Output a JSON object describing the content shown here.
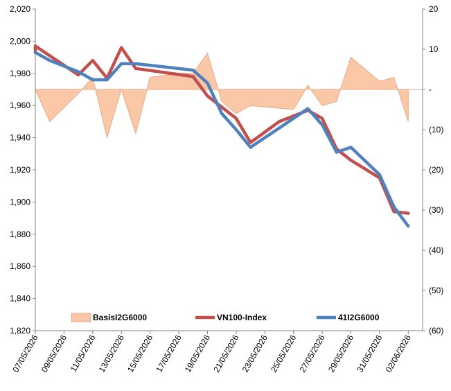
{
  "chart_data": {
    "type": "line",
    "title": "",
    "xlabel": "",
    "ylabel": "",
    "y2label": "",
    "x": [
      "07/05/2026",
      "08/05/2026",
      "09/05/2026",
      "10/05/2026",
      "11/05/2026",
      "12/05/2026",
      "13/05/2026",
      "14/05/2026",
      "15/05/2026",
      "16/05/2026",
      "17/05/2026",
      "18/05/2026",
      "19/05/2026",
      "20/05/2026",
      "21/05/2026",
      "22/05/2026",
      "23/05/2026",
      "24/05/2026",
      "25/05/2026",
      "26/05/2026",
      "27/05/2026",
      "28/05/2026",
      "29/05/2026",
      "30/05/2026",
      "31/05/2026",
      "01/06/2026",
      "02/06/2026",
      "03/06/2026"
    ],
    "x_tick_labels": [
      "07/05/2026",
      "09/05/2026",
      "11/05/2026",
      "13/05/2026",
      "15/05/2026",
      "17/05/2026",
      "19/05/2026",
      "21/05/2026",
      "23/05/2026",
      "25/05/2026",
      "27/05/2026",
      "29/05/2026",
      "31/05/2026",
      "02/06/2026"
    ],
    "ylim": [
      1820,
      2020
    ],
    "y_ticks": [
      "1,820",
      "1,840",
      "1,860",
      "1,880",
      "1,900",
      "1,920",
      "1,940",
      "1,960",
      "1,980",
      "2,000",
      "2,020"
    ],
    "y2lim": [
      -60,
      20
    ],
    "y2_ticks": [
      "(60)",
      "(50)",
      "(40)",
      "(30)",
      "(20)",
      "(10)",
      "-",
      "10",
      "20"
    ],
    "series": [
      {
        "name": "BasisI2G6000",
        "type": "area",
        "axis": "right",
        "color": "#fac8a6",
        "points": [
          [
            "07/05/2026",
            0
          ],
          [
            "08/05/2026",
            -8
          ],
          [
            "10/05/2026",
            -1
          ],
          [
            "11/05/2026",
            3
          ],
          [
            "12/05/2026",
            -12
          ],
          [
            "13/05/2026",
            0
          ],
          [
            "14/05/2026",
            -11
          ],
          [
            "15/05/2026",
            3
          ],
          [
            "17/05/2026",
            4
          ],
          [
            "18/05/2026",
            4
          ],
          [
            "19/05/2026",
            9
          ],
          [
            "20/05/2026",
            -3
          ],
          [
            "21/05/2026",
            -6
          ],
          [
            "22/05/2026",
            -4
          ],
          [
            "25/05/2026",
            -5
          ],
          [
            "26/05/2026",
            1
          ],
          [
            "27/05/2026",
            -4
          ],
          [
            "28/05/2026",
            -3
          ],
          [
            "29/05/2026",
            8
          ],
          [
            "31/05/2026",
            2
          ],
          [
            "01/06/2026",
            3
          ],
          [
            "02/06/2026",
            -8
          ]
        ]
      },
      {
        "name": "VN100-Index",
        "type": "line",
        "axis": "left",
        "color": "#c0504d",
        "points": [
          [
            "07/05/2026",
            1993
          ],
          [
            "07/05/2026",
            1997
          ],
          [
            "10/05/2026",
            1979
          ],
          [
            "11/05/2026",
            1988
          ],
          [
            "12/05/2026",
            1977
          ],
          [
            "13/05/2026",
            1996
          ],
          [
            "14/05/2026",
            1983
          ],
          [
            "18/05/2026",
            1978
          ],
          [
            "19/05/2026",
            1966
          ],
          [
            "21/05/2026",
            1952
          ],
          [
            "22/05/2026",
            1937
          ],
          [
            "24/05/2026",
            1950
          ],
          [
            "26/05/2026",
            1957
          ],
          [
            "27/05/2026",
            1952
          ],
          [
            "28/05/2026",
            1933
          ],
          [
            "29/05/2026",
            1926
          ],
          [
            "31/05/2026",
            1915
          ],
          [
            "01/06/2026",
            1894
          ],
          [
            "02/06/2026",
            1893
          ]
        ]
      },
      {
        "name": "41I2G6000",
        "type": "line",
        "axis": "left",
        "color": "#4f81bd",
        "points": [
          [
            "07/05/2026",
            1993
          ],
          [
            "08/05/2026",
            1988
          ],
          [
            "10/05/2026",
            1981
          ],
          [
            "11/05/2026",
            1976
          ],
          [
            "12/05/2026",
            1976
          ],
          [
            "13/05/2026",
            1986
          ],
          [
            "14/05/2026",
            1986
          ],
          [
            "18/05/2026",
            1982
          ],
          [
            "19/05/2026",
            1974
          ],
          [
            "20/05/2026",
            1955
          ],
          [
            "21/05/2026",
            1945
          ],
          [
            "22/05/2026",
            1934
          ],
          [
            "24/05/2026",
            1946
          ],
          [
            "26/05/2026",
            1958
          ],
          [
            "27/05/2026",
            1948
          ],
          [
            "28/05/2026",
            1931
          ],
          [
            "29/05/2026",
            1934
          ],
          [
            "31/05/2026",
            1917
          ],
          [
            "01/06/2026",
            1897
          ],
          [
            "02/06/2026",
            1885
          ]
        ]
      }
    ],
    "legend": {
      "placement": "bottom-inside"
    },
    "grid": false
  }
}
